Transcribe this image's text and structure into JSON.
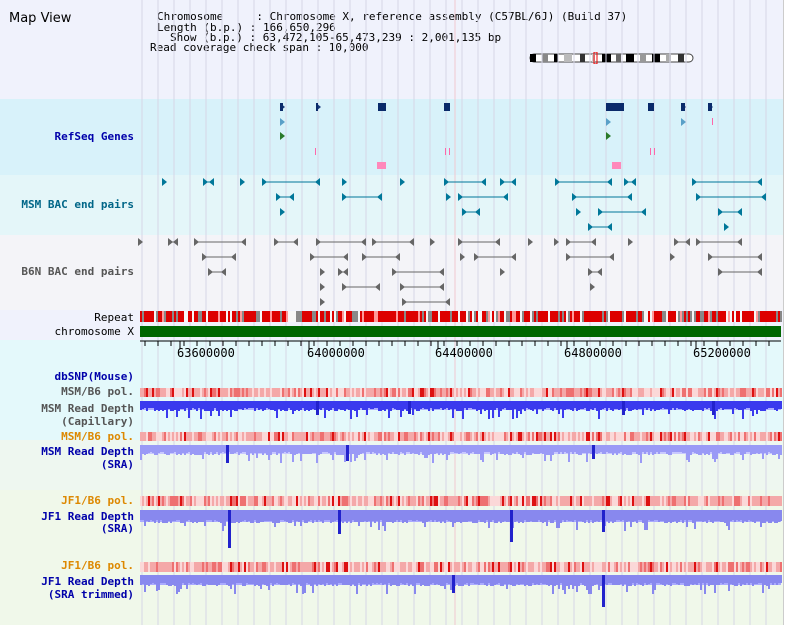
{
  "title": "Map View",
  "header": {
    "chromosome_line": "Chromosome     : Chromosome X, reference assembly (C57BL/6J) (Build 37)",
    "length_line": "Length (b.p.) : 166,650,296",
    "show_line": "Show (b.p.) : 63,472,105-65,473,239 : 2,001,135 bp",
    "coverage_line": "Read coverage check span : 10,000"
  },
  "tracks": {
    "refseq": "RefSeq Genes",
    "msm_bac": "MSM BAC end pairs",
    "b6n_bac": "B6N BAC end pairs",
    "repeat": "Repeat",
    "chromosome": "chromosome X",
    "dbsnp": "dbSNP(Mouse)",
    "msm_b6_pol_1": "MSM/B6 pol.",
    "msm_depth_cap_1": "MSM Read Depth",
    "msm_depth_cap_2": "(Capillary)",
    "msm_b6_pol_2": "MSM/B6 pol.",
    "msm_depth_sra_1": "MSM Read Depth",
    "msm_depth_sra_2": "(SRA)",
    "jf1_pol_1": "JF1/B6 pol.",
    "jf1_depth_sra_1": "JF1 Read Depth",
    "jf1_depth_sra_2": "(SRA)",
    "jf1_pol_2": "JF1/B6 pol.",
    "jf1_depth_trim_1": "JF1 Read Depth",
    "jf1_depth_trim_2": "(SRA trimmed)"
  },
  "axis_ticks": [
    "63600000",
    "64000000",
    "64400000",
    "64800000",
    "65200000"
  ],
  "colors": {
    "refseq_bg": "#d8f2fa",
    "bac_bg": "#e8f8fa",
    "chrom_green": "#006600",
    "repeat_red": "#dd0000",
    "depth_blue": "#3333ee",
    "pol_pink": "#f2a0a0"
  }
}
